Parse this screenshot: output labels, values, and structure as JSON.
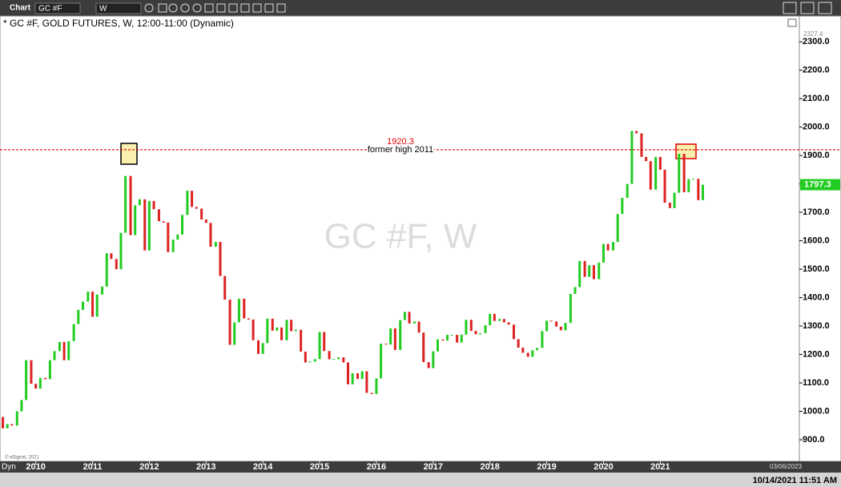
{
  "toolbar": {
    "app": "Chart",
    "symbol": "GC #F",
    "interval": "W"
  },
  "chart_data": {
    "type": "line",
    "title": "* GC #F, GOLD FUTURES, W, 12:00-11:00 (Dynamic)",
    "watermark": "GC #F, W",
    "x": [
      2009.33,
      2009.42,
      2009.5,
      2009.58,
      2009.67,
      2009.75,
      2009.83,
      2009.92,
      2010,
      2010.08,
      2010.17,
      2010.25,
      2010.33,
      2010.42,
      2010.5,
      2010.58,
      2010.67,
      2010.75,
      2010.83,
      2010.92,
      2011,
      2011.08,
      2011.17,
      2011.25,
      2011.33,
      2011.42,
      2011.5,
      2011.58,
      2011.67,
      2011.75,
      2011.83,
      2011.92,
      2012,
      2012.08,
      2012.17,
      2012.25,
      2012.33,
      2012.42,
      2012.5,
      2012.58,
      2012.67,
      2012.75,
      2012.83,
      2012.92,
      2013,
      2013.08,
      2013.17,
      2013.25,
      2013.33,
      2013.42,
      2013.5,
      2013.58,
      2013.67,
      2013.75,
      2013.83,
      2013.92,
      2014,
      2014.08,
      2014.17,
      2014.25,
      2014.33,
      2014.42,
      2014.5,
      2014.58,
      2014.67,
      2014.75,
      2014.83,
      2014.92,
      2015,
      2015.08,
      2015.17,
      2015.25,
      2015.33,
      2015.42,
      2015.5,
      2015.58,
      2015.67,
      2015.75,
      2015.83,
      2015.92,
      2016,
      2016.08,
      2016.17,
      2016.25,
      2016.33,
      2016.42,
      2016.5,
      2016.58,
      2016.67,
      2016.75,
      2016.83,
      2016.92,
      2017,
      2017.08,
      2017.17,
      2017.25,
      2017.33,
      2017.42,
      2017.5,
      2017.58,
      2017.67,
      2017.75,
      2017.83,
      2017.92,
      2018,
      2018.08,
      2018.17,
      2018.25,
      2018.33,
      2018.42,
      2018.5,
      2018.58,
      2018.67,
      2018.75,
      2018.83,
      2018.92,
      2019,
      2019.08,
      2019.17,
      2019.25,
      2019.33,
      2019.42,
      2019.5,
      2019.58,
      2019.67,
      2019.75,
      2019.83,
      2019.92,
      2020,
      2020.08,
      2020.17,
      2020.25,
      2020.33,
      2020.42,
      2020.5,
      2020.58,
      2020.67,
      2020.75,
      2020.83,
      2020.92,
      2021,
      2021.08,
      2021.17,
      2021.25,
      2021.33,
      2021.42,
      2021.5,
      2021.58,
      2021.67,
      2021.75
    ],
    "values": [
      980,
      940,
      955,
      950,
      1000,
      1040,
      1180,
      1097,
      1080,
      1118,
      1113,
      1180,
      1212,
      1244,
      1180,
      1247,
      1307,
      1357,
      1386,
      1421,
      1333,
      1411,
      1439,
      1556,
      1536,
      1500,
      1628,
      1828,
      1620,
      1725,
      1746,
      1566,
      1740,
      1711,
      1669,
      1664,
      1560,
      1604,
      1622,
      1691,
      1776,
      1719,
      1713,
      1675,
      1663,
      1579,
      1596,
      1476,
      1393,
      1234,
      1313,
      1396,
      1327,
      1323,
      1250,
      1202,
      1240,
      1326,
      1284,
      1295,
      1250,
      1322,
      1282,
      1287,
      1210,
      1172,
      1175,
      1184,
      1279,
      1212,
      1183,
      1184,
      1190,
      1172,
      1095,
      1134,
      1114,
      1141,
      1065,
      1061,
      1116,
      1238,
      1235,
      1292,
      1216,
      1321,
      1350,
      1309,
      1316,
      1277,
      1173,
      1152,
      1211,
      1253,
      1249,
      1269,
      1269,
      1242,
      1270,
      1322,
      1283,
      1271,
      1275,
      1303,
      1343,
      1318,
      1325,
      1313,
      1305,
      1254,
      1224,
      1206,
      1192,
      1215,
      1223,
      1282,
      1319,
      1316,
      1298,
      1285,
      1311,
      1413,
      1437,
      1529,
      1473,
      1514,
      1465,
      1523,
      1589,
      1566,
      1596,
      1694,
      1751,
      1800,
      1986,
      1978,
      1895,
      1880,
      1780,
      1895,
      1850,
      1734,
      1715,
      1769,
      1906,
      1771,
      1817,
      1818,
      1743,
      1797.3
    ],
    "up_color": "#22cc22",
    "down_color": "#dd2222",
    "xlim": [
      2009.37,
      2023.45
    ],
    "xticks": [
      2010,
      2011,
      2012,
      2013,
      2014,
      2015,
      2016,
      2017,
      2018,
      2019,
      2020,
      2021
    ],
    "ylim": [
      824,
      2385
    ],
    "yticks": [
      {
        "value": 900,
        "label": "900.0"
      },
      {
        "value": 1000,
        "label": "1000.0"
      },
      {
        "value": 1100,
        "label": "1100.0"
      },
      {
        "value": 1200,
        "label": "1200.0"
      },
      {
        "value": 1300,
        "label": "1300.0"
      },
      {
        "value": 1400,
        "label": "1400.0"
      },
      {
        "value": 1500,
        "label": "1500.0"
      },
      {
        "value": 1600,
        "label": "1600.0"
      },
      {
        "value": 1700,
        "label": "1700.0"
      },
      {
        "value": 1800,
        "label": "1800.0"
      },
      {
        "value": 1900,
        "label": "1900.0"
      },
      {
        "value": 2000,
        "label": "2000.0"
      },
      {
        "value": 2100,
        "label": "2100.0"
      },
      {
        "value": 2200,
        "label": "2200.0"
      },
      {
        "value": 2300,
        "label": "2300.0"
      }
    ],
    "scale_high": 2327.4,
    "reference_line": {
      "value": 1920.3,
      "label": "former high 2011",
      "color": "#dd0000"
    },
    "copyright": "© eSignal, 2021",
    "axis_mode": "Dyn",
    "end_date": "03/06/2023"
  },
  "status": {
    "timestamp": "10/14/2021 11:51 AM"
  }
}
